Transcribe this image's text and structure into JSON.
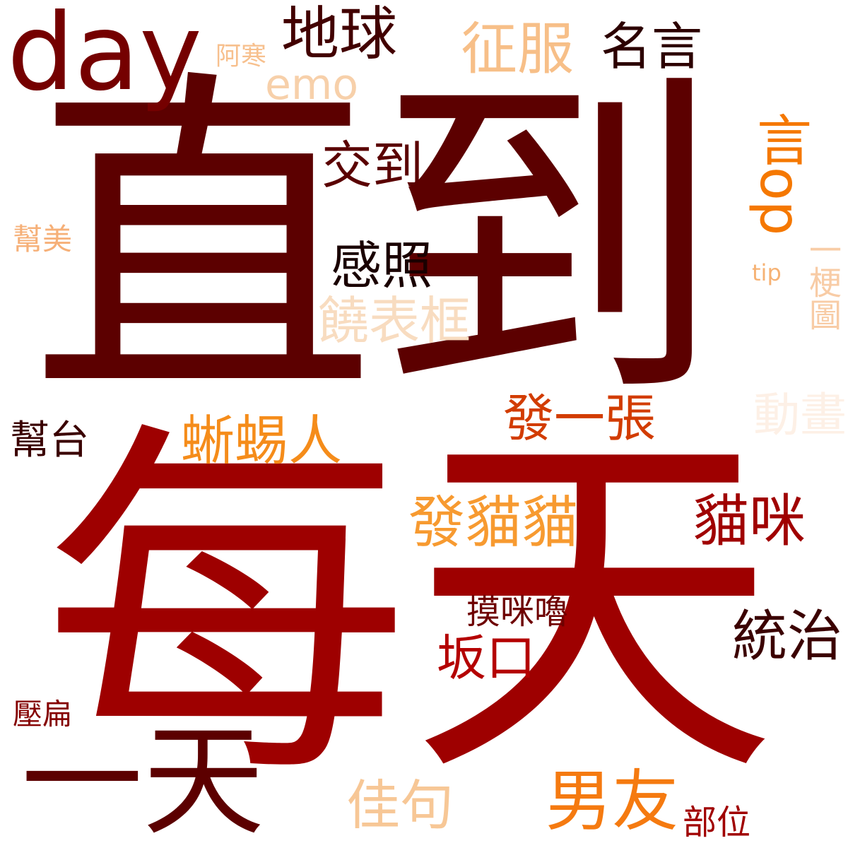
{
  "cloud": {
    "words": [
      {
        "id": "zhidao",
        "text": "直到",
        "color": "#5c0000"
      },
      {
        "id": "meitian",
        "text": "每天",
        "color": "#9e0000"
      },
      {
        "id": "yitian",
        "text": "一天",
        "color": "#5c0000"
      },
      {
        "id": "day",
        "text": "day",
        "color": "#750000"
      },
      {
        "id": "diqiu",
        "text": "地球",
        "color": "#420000"
      },
      {
        "id": "zhengfu",
        "text": "征服",
        "color": "#f7bf88"
      },
      {
        "id": "mingyan",
        "text": "名言",
        "color": "#2c0000"
      },
      {
        "id": "ahan",
        "text": "阿寒",
        "color": "#f7c08e"
      },
      {
        "id": "emo",
        "text": "emo",
        "color": "#f7d0aa"
      },
      {
        "id": "jiaodao",
        "text": "交到",
        "color": "#5a0000"
      },
      {
        "id": "ganzhao",
        "text": "感照",
        "color": "#1a0000"
      },
      {
        "id": "raobiaokuang",
        "text": "饒表框",
        "color": "#f8dcc0"
      },
      {
        "id": "bangmei",
        "text": "幫美",
        "color": "#f6b078"
      },
      {
        "id": "bangtai",
        "text": "幫台",
        "color": "#3a0000"
      },
      {
        "id": "xiyiren",
        "text": "蜥蜴人",
        "color": "#f58c1a"
      },
      {
        "id": "fayizhang",
        "text": "發一張",
        "color": "#d23c00"
      },
      {
        "id": "famaomao",
        "text": "發貓貓",
        "color": "#f79a30"
      },
      {
        "id": "maomi",
        "text": "貓咪",
        "color": "#a00000"
      },
      {
        "id": "momilu",
        "text": "摸咪嚕",
        "color": "#6e0000"
      },
      {
        "id": "tongzhi",
        "text": "統治",
        "color": "#3b0000"
      },
      {
        "id": "bankou",
        "text": "坂口",
        "color": "#b40000"
      },
      {
        "id": "yabian",
        "text": "壓扁",
        "color": "#850000"
      },
      {
        "id": "jiaju",
        "text": "佳句",
        "color": "#f7c796"
      },
      {
        "id": "nanyou",
        "text": "男友",
        "color": "#f57a10"
      },
      {
        "id": "buwei",
        "text": "部位",
        "color": "#a00000"
      },
      {
        "id": "yanop",
        "text": "言op",
        "color": "#f57800"
      },
      {
        "id": "yigengtu",
        "text": "一梗圖",
        "color": "#f8ccA6"
      },
      {
        "id": "tip",
        "text": "tip",
        "color": "#f6b274"
      },
      {
        "id": "donghua",
        "text": "動畫",
        "color": "#fdf0e6"
      }
    ]
  }
}
